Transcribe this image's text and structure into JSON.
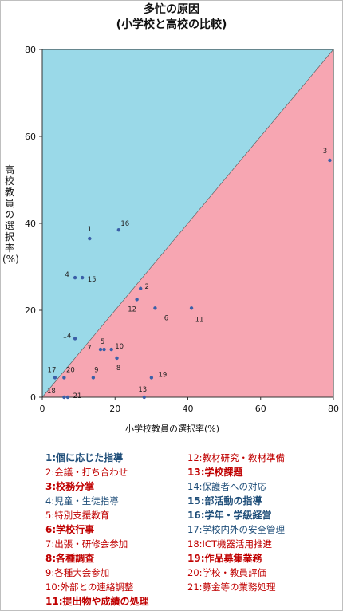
{
  "title_line1": "多忙の原因",
  "title_line2": "(小学校と高校の比較)",
  "chart_data": {
    "type": "scatter",
    "xlabel": "小学校教員の選択率(%)",
    "ylabel": "高校教員の選択率(%)",
    "xlim": [
      0,
      80
    ],
    "ylim": [
      0,
      80
    ],
    "xticks": [
      "0",
      "20",
      "40",
      "60",
      "80"
    ],
    "yticks": [
      "0",
      "20",
      "40",
      "60",
      "80"
    ],
    "grid": false,
    "background": {
      "upper": "#9ad9e8",
      "lower": "#f7a6b2"
    },
    "points": [
      {
        "label": "1",
        "x": 13,
        "y": 36.5
      },
      {
        "label": "2",
        "x": 27,
        "y": 25
      },
      {
        "label": "3",
        "x": 79,
        "y": 54.5
      },
      {
        "label": "4",
        "x": 9,
        "y": 27.5
      },
      {
        "label": "5",
        "x": 17,
        "y": 11
      },
      {
        "label": "6",
        "x": 31,
        "y": 20.5
      },
      {
        "label": "7",
        "x": 16,
        "y": 11
      },
      {
        "label": "8",
        "x": 20.5,
        "y": 9
      },
      {
        "label": "9",
        "x": 14,
        "y": 4.5
      },
      {
        "label": "10",
        "x": 19,
        "y": 11
      },
      {
        "label": "11",
        "x": 41,
        "y": 20.5
      },
      {
        "label": "12",
        "x": 26,
        "y": 22.5
      },
      {
        "label": "13",
        "x": 28,
        "y": 0
      },
      {
        "label": "14",
        "x": 9,
        "y": 13.5
      },
      {
        "label": "15",
        "x": 11,
        "y": 27.5
      },
      {
        "label": "16",
        "x": 21,
        "y": 38.5
      },
      {
        "label": "17",
        "x": 3.5,
        "y": 4.5
      },
      {
        "label": "18",
        "x": 6,
        "y": 0
      },
      {
        "label": "19",
        "x": 30,
        "y": 4.5
      },
      {
        "label": "20",
        "x": 6,
        "y": 4.5
      },
      {
        "label": "21",
        "x": 7,
        "y": 0
      }
    ],
    "legend": [
      {
        "num": "1",
        "text": "個に応じた指導",
        "color": "#1f4e79",
        "bold": true
      },
      {
        "num": "2",
        "text": "会議・打ち合わせ",
        "color": "#c00000",
        "bold": false
      },
      {
        "num": "3",
        "text": "校務分掌",
        "color": "#c00000",
        "bold": true
      },
      {
        "num": "4",
        "text": "児童・生徒指導",
        "color": "#1f4e79",
        "bold": false
      },
      {
        "num": "5",
        "text": "特別支援教育",
        "color": "#c00000",
        "bold": false
      },
      {
        "num": "6",
        "text": "学校行事",
        "color": "#c00000",
        "bold": true
      },
      {
        "num": "7",
        "text": "出張・研修会参加",
        "color": "#c00000",
        "bold": false
      },
      {
        "num": "8",
        "text": "各種調査",
        "color": "#c00000",
        "bold": true
      },
      {
        "num": "9",
        "text": "各種大会参加",
        "color": "#c00000",
        "bold": false
      },
      {
        "num": "10",
        "text": "外部との連絡調整",
        "color": "#c00000",
        "bold": false
      },
      {
        "num": "11",
        "text": "提出物や成績の処理",
        "color": "#c00000",
        "bold": true
      },
      {
        "num": "12",
        "text": "教材研究・教材準備",
        "color": "#c00000",
        "bold": false
      },
      {
        "num": "13",
        "text": "学校課題",
        "color": "#c00000",
        "bold": true
      },
      {
        "num": "14",
        "text": "保護者への対応",
        "color": "#1f4e79",
        "bold": false
      },
      {
        "num": "15",
        "text": "部活動の指導",
        "color": "#1f4e79",
        "bold": true
      },
      {
        "num": "16",
        "text": "学年・学級経営",
        "color": "#1f4e79",
        "bold": true
      },
      {
        "num": "17",
        "text": "学校内外の安全管理",
        "color": "#1f4e79",
        "bold": false
      },
      {
        "num": "18",
        "text": "ICT機器活用推進",
        "color": "#c00000",
        "bold": false
      },
      {
        "num": "19",
        "text": "作品募集業務",
        "color": "#c00000",
        "bold": true
      },
      {
        "num": "20",
        "text": "学校・教員評価",
        "color": "#c00000",
        "bold": false
      },
      {
        "num": "21",
        "text": "募金等の業務処理",
        "color": "#c00000",
        "bold": false
      }
    ]
  }
}
